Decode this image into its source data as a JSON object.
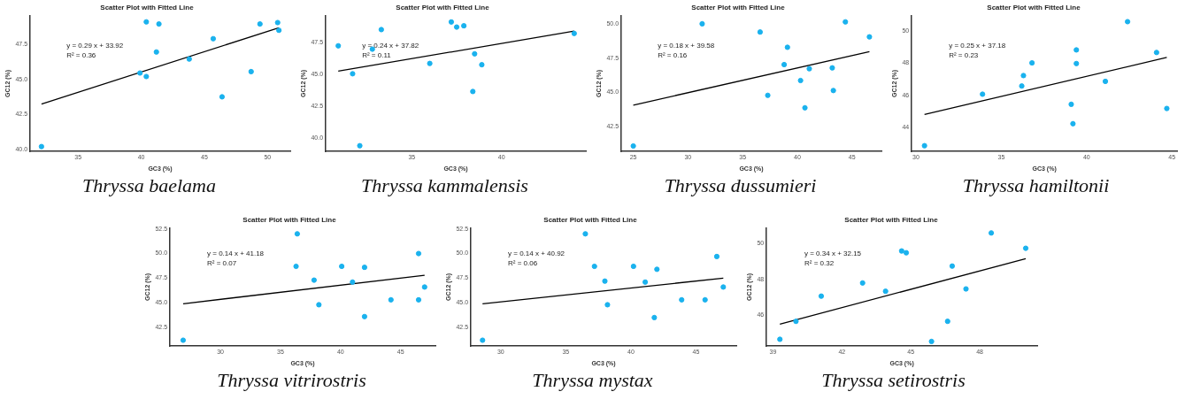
{
  "chart_data": [
    {
      "type": "scatter",
      "title": "Scatter Plot with Fitted Line",
      "subtitle": "Thryssa baelama",
      "xlabel": "GC3 (%)",
      "ylabel": "GC12 (%)",
      "annotations": [
        "y = 0.29 x + 33.92",
        "R² = 0.36"
      ],
      "xlim": [
        31.2,
        51.8
      ],
      "ylim": [
        39.85,
        49.55
      ],
      "xticks": [
        35,
        40,
        45,
        50
      ],
      "yticks": [
        {
          "value": 40,
          "label": "40.0"
        },
        {
          "value": 42.5,
          "label": "42.5"
        },
        {
          "value": 45,
          "label": "45.0"
        },
        {
          "value": 47.5,
          "label": "47.5"
        }
      ],
      "grid": false,
      "legend": false,
      "series": [
        {
          "type": "scatter",
          "color": "#1ab2ee",
          "marker": "circle",
          "x": [
            32.1,
            40.4,
            41.4,
            41.2,
            39.9,
            40.4,
            43.8,
            45.7,
            46.4,
            48.7,
            49.4,
            50.8,
            50.9
          ],
          "values": [
            40.2,
            49.1,
            48.95,
            46.95,
            45.45,
            45.2,
            46.45,
            47.9,
            43.75,
            45.55,
            48.95,
            49.05,
            48.5
          ]
        },
        {
          "type": "line",
          "color": "#000000",
          "marker": "none",
          "x": [
            32.1,
            50.9
          ],
          "values": [
            43.23,
            48.68
          ]
        }
      ]
    },
    {
      "type": "scatter",
      "title": "Scatter Plot with Fitted Line",
      "subtitle": "Thryssa kammalensis",
      "xlabel": "GC3 (%)",
      "ylabel": "GC12 (%)",
      "annotations": [
        "y = 0.24 x + 37.82",
        "R² = 0.11"
      ],
      "xlim": [
        30.2,
        44.7
      ],
      "ylim": [
        38.95,
        49.6
      ],
      "xticks": [
        35,
        40
      ],
      "yticks": [
        {
          "value": 40,
          "label": "40.0"
        },
        {
          "value": 42.5,
          "label": "42.5"
        },
        {
          "value": 45,
          "label": "45.0"
        },
        {
          "value": 47.5,
          "label": "47.5"
        }
      ],
      "grid": false,
      "legend": false,
      "series": [
        {
          "type": "scatter",
          "color": "#1ab2ee",
          "marker": "circle",
          "x": [
            30.9,
            31.7,
            32.1,
            32.8,
            33.3,
            36.0,
            37.2,
            37.5,
            37.9,
            38.4,
            38.5,
            38.9,
            44.05
          ],
          "values": [
            47.23,
            45.04,
            39.4,
            46.97,
            48.5,
            45.85,
            49.1,
            48.7,
            48.8,
            43.65,
            46.6,
            45.75,
            48.2
          ]
        },
        {
          "type": "line",
          "color": "#000000",
          "marker": "none",
          "x": [
            30.9,
            44.05
          ],
          "values": [
            45.24,
            48.39
          ]
        }
      ]
    },
    {
      "type": "scatter",
      "title": "Scatter Plot with Fitted Line",
      "subtitle": "Thryssa dussumieri",
      "xlabel": "GC3 (%)",
      "ylabel": "GC12 (%)",
      "annotations": [
        "y = 0.18 x + 39.58",
        "R² = 0.16"
      ],
      "xlim": [
        23.9,
        47.7
      ],
      "ylim": [
        40.7,
        50.6
      ],
      "xticks": [
        25,
        30,
        35,
        40,
        45
      ],
      "yticks": [
        {
          "value": 42.5,
          "label": "42.5"
        },
        {
          "value": 45,
          "label": "45.0"
        },
        {
          "value": 47.5,
          "label": "47.5"
        },
        {
          "value": 50,
          "label": "50.0"
        }
      ],
      "grid": false,
      "legend": false,
      "series": [
        {
          "type": "scatter",
          "color": "#1ab2ee",
          "marker": "circle",
          "x": [
            25.0,
            31.3,
            36.6,
            37.3,
            38.8,
            39.1,
            40.3,
            40.7,
            41.1,
            43.2,
            43.3,
            44.4,
            46.6
          ],
          "values": [
            41.1,
            50.0,
            49.4,
            44.79,
            47.03,
            48.29,
            45.87,
            43.88,
            46.73,
            46.79,
            45.14,
            50.14,
            49.05
          ]
        },
        {
          "type": "line",
          "color": "#000000",
          "marker": "none",
          "x": [
            25.0,
            46.6
          ],
          "values": [
            44.08,
            47.97
          ]
        }
      ]
    },
    {
      "type": "scatter",
      "title": "Scatter Plot with Fitted Line",
      "subtitle": "Thryssa hamiltonii",
      "xlabel": "GC3 (%)",
      "ylabel": "GC12 (%)",
      "annotations": [
        "y = 0.25 x + 37.18",
        "R² = 0.23"
      ],
      "xlim": [
        29.75,
        45.3
      ],
      "ylim": [
        42.5,
        50.97
      ],
      "xticks": [
        30,
        35,
        40,
        45
      ],
      "yticks": [
        44,
        46,
        48,
        50
      ],
      "grid": false,
      "legend": false,
      "series": [
        {
          "type": "scatter",
          "color": "#1ab2ee",
          "marker": "circle",
          "x": [
            30.5,
            33.9,
            36.2,
            36.3,
            36.8,
            39.1,
            39.2,
            39.4,
            39.4,
            41.1,
            42.4,
            44.1,
            44.7
          ],
          "values": [
            42.86,
            46.07,
            46.58,
            47.23,
            48.02,
            45.44,
            44.23,
            48.83,
            47.98,
            46.87,
            50.59,
            48.67,
            45.18
          ]
        },
        {
          "type": "line",
          "color": "#000000",
          "marker": "none",
          "x": [
            30.5,
            44.7
          ],
          "values": [
            44.81,
            48.36
          ]
        }
      ]
    },
    {
      "type": "scatter",
      "title": "Scatter Plot with Fitted Line",
      "subtitle": "Thryssa vitrirostris",
      "xlabel": "GC3 (%)",
      "ylabel": "GC12 (%)",
      "annotations": [
        "y = 0.14 x + 41.18",
        "R² = 0.07"
      ],
      "xlim": [
        25.8,
        47.9
      ],
      "ylim": [
        40.6,
        52.6
      ],
      "xticks": [
        30,
        35,
        40,
        45
      ],
      "yticks": [
        {
          "value": 42.5,
          "label": "42.5"
        },
        {
          "value": 45,
          "label": "45.0"
        },
        {
          "value": 47.5,
          "label": "47.5"
        },
        {
          "value": 50,
          "label": "50.0"
        },
        {
          "value": 52.5,
          "label": "52.5"
        }
      ],
      "grid": false,
      "legend": false,
      "series": [
        {
          "type": "scatter",
          "color": "#1ab2ee",
          "marker": "circle",
          "x": [
            26.9,
            36.4,
            36.3,
            37.8,
            38.2,
            40.1,
            41.0,
            42.0,
            42.0,
            44.2,
            46.5,
            46.5,
            47.0
          ],
          "values": [
            41.2,
            52.0,
            48.7,
            47.3,
            44.8,
            48.7,
            47.1,
            48.6,
            43.6,
            45.3,
            50.0,
            45.3,
            46.6
          ]
        },
        {
          "type": "line",
          "color": "#000000",
          "marker": "none",
          "x": [
            26.9,
            47.0
          ],
          "values": [
            44.9,
            47.8
          ]
        }
      ]
    },
    {
      "type": "scatter",
      "title": "Scatter Plot with Fitted Line",
      "subtitle": "Thryssa mystax",
      "xlabel": "GC3 (%)",
      "ylabel": "GC12 (%)",
      "annotations": [
        "y = 0.14 x + 40.92",
        "R² = 0.06"
      ],
      "xlim": [
        27.7,
        48.1
      ],
      "ylim": [
        40.6,
        52.6
      ],
      "xticks": [
        30,
        35,
        40,
        45
      ],
      "yticks": [
        {
          "value": 42.5,
          "label": "42.5"
        },
        {
          "value": 45,
          "label": "45.0"
        },
        {
          "value": 47.5,
          "label": "47.5"
        },
        {
          "value": 50,
          "label": "50.0"
        },
        {
          "value": 52.5,
          "label": "52.5"
        }
      ],
      "grid": false,
      "legend": false,
      "series": [
        {
          "type": "scatter",
          "color": "#1ab2ee",
          "marker": "circle",
          "x": [
            28.6,
            36.5,
            37.2,
            38.0,
            38.2,
            40.2,
            41.1,
            42.0,
            41.8,
            43.9,
            45.7,
            46.6,
            47.1
          ],
          "values": [
            41.2,
            52.0,
            48.7,
            47.2,
            44.8,
            48.7,
            47.1,
            48.4,
            43.5,
            45.3,
            45.3,
            49.7,
            46.6
          ]
        },
        {
          "type": "line",
          "color": "#000000",
          "marker": "none",
          "x": [
            28.6,
            47.1
          ],
          "values": [
            44.9,
            47.5
          ]
        }
      ]
    },
    {
      "type": "scatter",
      "title": "Scatter Plot with Fitted Line",
      "subtitle": "Thryssa setirostris",
      "xlabel": "GC3 (%)",
      "ylabel": "GC12 (%)",
      "annotations": [
        "y = 0.34 x + 32.15",
        "R² = 0.32"
      ],
      "xlim": [
        38.72,
        50.5
      ],
      "ylim": [
        44.29,
        50.86
      ],
      "xticks": [
        39,
        42,
        45,
        48
      ],
      "yticks": [
        46,
        48,
        50
      ],
      "grid": false,
      "legend": false,
      "series": [
        {
          "type": "scatter",
          "color": "#1ab2ee",
          "marker": "circle",
          "x": [
            39.3,
            40.0,
            41.1,
            42.9,
            43.9,
            44.6,
            44.8,
            45.9,
            46.6,
            46.8,
            47.4,
            48.5,
            50.0
          ],
          "values": [
            44.67,
            45.67,
            47.07,
            47.8,
            47.34,
            49.58,
            49.48,
            44.55,
            45.67,
            48.74,
            47.47,
            50.58,
            49.73
          ]
        },
        {
          "type": "line",
          "color": "#000000",
          "marker": "none",
          "x": [
            39.3,
            50.0
          ],
          "values": [
            45.51,
            49.15
          ]
        }
      ]
    }
  ]
}
